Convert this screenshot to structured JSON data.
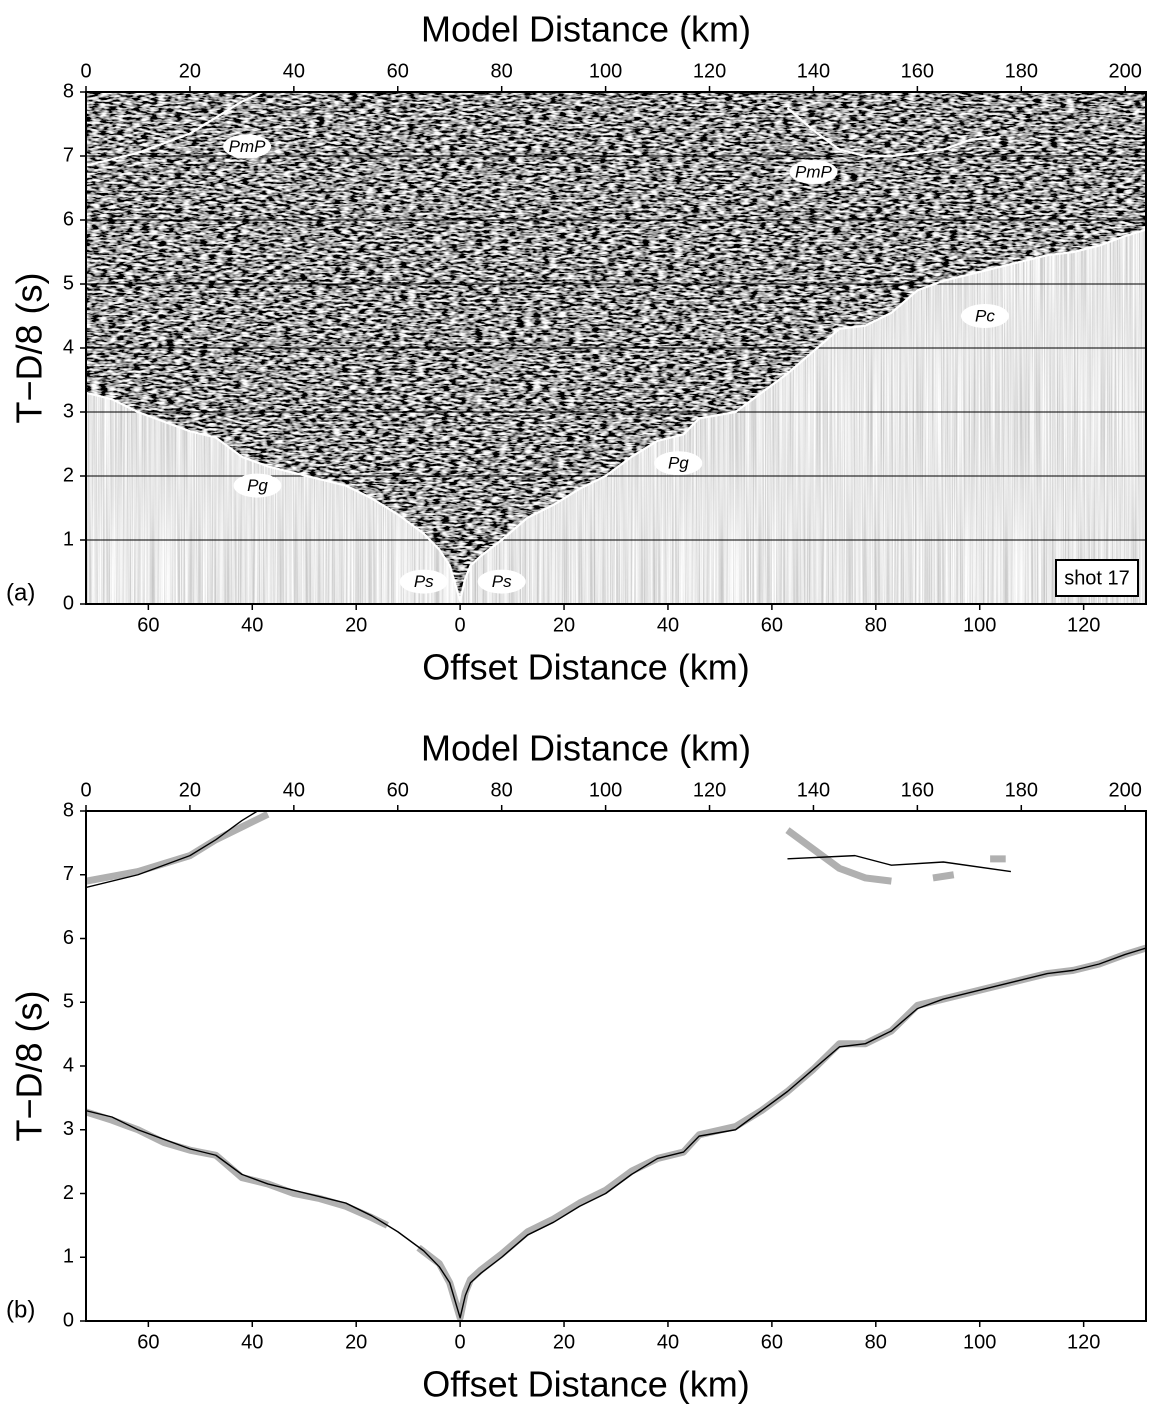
{
  "chart_data": [
    {
      "type": "line",
      "panel_label": "(a)",
      "x_label_top": "Model Distance (km)",
      "x_label_bottom": "Offset Distance (km)",
      "y_label": "T−D/8 (s)",
      "xlim": [
        0,
        204
      ],
      "xticks": [
        0,
        20,
        40,
        60,
        80,
        100,
        120,
        140,
        160,
        180,
        200
      ],
      "x2lim": [
        -72,
        132
      ],
      "x2ticks": [
        {
          "value": -60,
          "label": "60"
        },
        {
          "value": -40,
          "label": "40"
        },
        {
          "value": -20,
          "label": "20"
        },
        0,
        20,
        40,
        60,
        80,
        100,
        120
      ],
      "ylim": [
        0,
        8
      ],
      "yticks": [
        0,
        1,
        2,
        3,
        4,
        5,
        6,
        7,
        8
      ],
      "grid": true,
      "shot_label": "shot 17",
      "series": [
        {
          "color": "#ffffff",
          "x": [
            0,
            5,
            10,
            15,
            20,
            25,
            30,
            35,
            40,
            45,
            50,
            55,
            60,
            65,
            68,
            70,
            72,
            73,
            74,
            76,
            80,
            85,
            90,
            95,
            100,
            105,
            110,
            115,
            118,
            125,
            130,
            135,
            140,
            145,
            150,
            155,
            160,
            165,
            170,
            175,
            180,
            185,
            190,
            195,
            200,
            204
          ],
          "values": [
            3.3,
            3.2,
            3.0,
            2.85,
            2.7,
            2.6,
            2.3,
            2.15,
            2.05,
            1.95,
            1.85,
            1.65,
            1.4,
            1.1,
            0.85,
            0.6,
            0.05,
            0.4,
            0.6,
            0.75,
            1.0,
            1.35,
            1.55,
            1.8,
            2.0,
            2.3,
            2.55,
            2.65,
            2.9,
            3.0,
            3.3,
            3.6,
            3.95,
            4.3,
            4.35,
            4.55,
            4.9,
            5.05,
            5.15,
            5.25,
            5.35,
            5.45,
            5.5,
            5.6,
            5.75,
            5.85
          ]
        },
        {
          "color": "#ffffff",
          "x": [
            0,
            10,
            20,
            25,
            30,
            34
          ],
          "values": [
            6.85,
            7.05,
            7.35,
            7.6,
            7.85,
            8.0
          ]
        },
        {
          "color": "#ffffff",
          "x": [
            135,
            140,
            145,
            150,
            155,
            160,
            165,
            170,
            176
          ],
          "values": [
            7.75,
            7.4,
            7.1,
            7.0,
            7.0,
            7.05,
            7.1,
            7.25,
            7.3
          ]
        }
      ],
      "annotations": [
        {
          "text": "PmP",
          "x": 31,
          "y": 7.15
        },
        {
          "text": "PmP",
          "x": 140,
          "y": 6.75
        },
        {
          "text": "Pc",
          "x": 173,
          "y": 4.5
        },
        {
          "text": "Pg",
          "x": 33,
          "y": 1.85
        },
        {
          "text": "Pg",
          "x": 114,
          "y": 2.2
        },
        {
          "text": "Ps",
          "x": 65,
          "y": 0.35
        },
        {
          "text": "Ps",
          "x": 80,
          "y": 0.35
        }
      ]
    },
    {
      "type": "line",
      "panel_label": "(b)",
      "x_label_top": "Model Distance (km)",
      "x_label_bottom": "Offset Distance (km)",
      "y_label": "T−D/8 (s)",
      "xlim": [
        0,
        204
      ],
      "xticks": [
        0,
        20,
        40,
        60,
        80,
        100,
        120,
        140,
        160,
        180,
        200
      ],
      "x2lim": [
        -72,
        132
      ],
      "x2ticks": [
        {
          "value": -60,
          "label": "60"
        },
        {
          "value": -40,
          "label": "40"
        },
        {
          "value": -20,
          "label": "20"
        },
        0,
        20,
        40,
        60,
        80,
        100,
        120
      ],
      "ylim": [
        0,
        8
      ],
      "yticks": [
        0,
        1,
        2,
        3,
        4,
        5,
        6,
        7,
        8
      ],
      "grid": false,
      "series": [
        {
          "color": "#b0b0b0",
          "x": [
            0,
            5,
            10,
            15,
            20,
            25,
            30,
            35,
            40,
            45,
            50,
            55,
            58,
            null,
            64,
            68,
            70,
            72,
            73,
            74,
            76,
            80,
            85,
            90,
            95,
            100,
            105,
            110,
            115,
            118,
            125,
            130,
            135,
            140,
            145,
            150,
            155,
            160,
            165,
            170,
            175,
            180,
            185,
            190,
            195,
            200,
            204
          ],
          "values": [
            3.28,
            3.15,
            3.0,
            2.8,
            2.68,
            2.6,
            2.25,
            2.15,
            2.0,
            1.92,
            1.8,
            1.62,
            1.5,
            null,
            1.15,
            0.9,
            0.6,
            0.05,
            0.45,
            0.65,
            0.8,
            1.05,
            1.4,
            1.6,
            1.85,
            2.05,
            2.35,
            2.55,
            2.65,
            2.92,
            3.05,
            3.3,
            3.6,
            3.95,
            4.35,
            4.35,
            4.55,
            4.95,
            5.05,
            5.15,
            5.25,
            5.35,
            5.45,
            5.5,
            5.6,
            5.75,
            5.85
          ]
        },
        {
          "color": "#000000",
          "x": [
            0,
            5,
            10,
            15,
            20,
            25,
            30,
            35,
            40,
            45,
            50,
            55,
            60,
            65,
            68,
            70,
            72,
            73,
            74,
            76,
            80,
            85,
            90,
            95,
            100,
            105,
            110,
            115,
            118,
            125,
            130,
            135,
            140,
            145,
            150,
            155,
            160,
            165,
            170,
            175,
            180,
            185,
            190,
            195,
            200,
            204
          ],
          "values": [
            3.3,
            3.2,
            3.0,
            2.85,
            2.7,
            2.6,
            2.3,
            2.15,
            2.05,
            1.95,
            1.85,
            1.65,
            1.4,
            1.1,
            0.85,
            0.6,
            0.05,
            0.4,
            0.6,
            0.75,
            1.0,
            1.35,
            1.55,
            1.8,
            2.0,
            2.3,
            2.55,
            2.65,
            2.9,
            3.0,
            3.3,
            3.6,
            3.95,
            4.3,
            4.35,
            4.55,
            4.9,
            5.05,
            5.15,
            5.25,
            5.35,
            5.45,
            5.5,
            5.6,
            5.75,
            5.85
          ]
        },
        {
          "color": "#b0b0b0",
          "x": [
            0,
            10,
            20,
            25,
            30,
            35
          ],
          "values": [
            6.9,
            7.05,
            7.3,
            7.55,
            7.75,
            7.95
          ]
        },
        {
          "color": "#000000",
          "x": [
            0,
            10,
            20,
            25,
            30,
            33
          ],
          "values": [
            6.8,
            7.0,
            7.3,
            7.55,
            7.85,
            8.0
          ]
        },
        {
          "color": "#b0b0b0",
          "x": [
            135,
            140,
            145,
            150,
            155,
            null,
            163,
            167,
            null,
            174,
            177
          ],
          "values": [
            7.7,
            7.4,
            7.1,
            6.95,
            6.9,
            null,
            6.95,
            7.0,
            null,
            7.25,
            7.25
          ]
        },
        {
          "color": "#000000",
          "x": [
            135,
            148,
            155,
            165,
            178
          ],
          "values": [
            7.25,
            7.3,
            7.15,
            7.2,
            7.05
          ]
        }
      ]
    }
  ]
}
